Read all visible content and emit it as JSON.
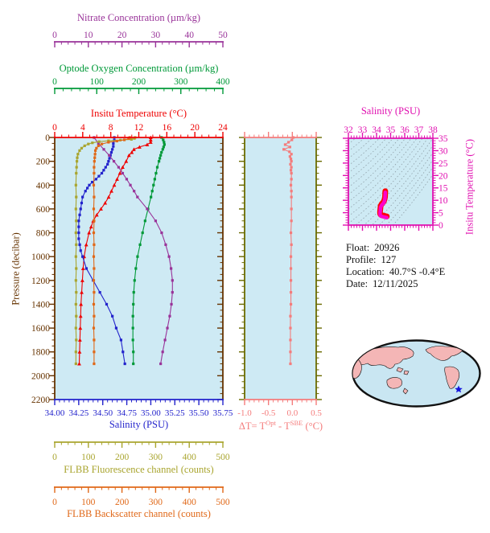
{
  "colors": {
    "plot_bg": "#CEEAF4",
    "nitrate": "#993399",
    "oxygen": "#009938",
    "temperature": "#EE0000",
    "pressure": "#663300",
    "salinity": "#2323CC",
    "fluorescence": "#A9A52F",
    "backscatter": "#E06818",
    "delta_t": "#F47C7C",
    "delta_border": "#6B6B00",
    "ts_axis": "#E010B0",
    "ts_curve": "#FF00CC",
    "ts_curve_tip": "#FF0000",
    "isopycnal": "#8FA0A8",
    "map_land": "#F4B6B6",
    "map_ocean": "#C9E6F2",
    "map_outline": "#111111",
    "map_marker": "#1515DD"
  },
  "axes": {
    "nitrate": {
      "title": "Nitrate Concentration (µm/kg)",
      "min": 0,
      "max": 50,
      "majors": [
        0,
        10,
        20,
        30,
        40,
        50
      ],
      "minor_step": 2,
      "color": "#993399"
    },
    "oxygen": {
      "title": "Optode Oxygen Concentration (µm/kg)",
      "min": 0,
      "max": 400,
      "majors": [
        0,
        100,
        200,
        300,
        400
      ],
      "minor_step": 20,
      "color": "#009938"
    },
    "temperature": {
      "title": "Insitu Temperature (°C)",
      "min": 0,
      "max": 24,
      "majors": [
        0,
        4,
        8,
        12,
        16,
        20,
        24
      ],
      "minor_step": 1,
      "color": "#EE0000"
    },
    "pressure": {
      "title": "Pressure (decibar)",
      "min": 0,
      "max": 2200,
      "majors": [
        0,
        200,
        400,
        600,
        800,
        1000,
        1200,
        1400,
        1600,
        1800,
        2000,
        2200
      ],
      "minor_step": 50,
      "color": "#663300"
    },
    "salinity": {
      "title": "Salinity (PSU)",
      "min": 34,
      "max": 35.75,
      "majors": [
        "34.00",
        "34.25",
        "34.50",
        "34.75",
        "35.00",
        "35.25",
        "35.50",
        "35.75"
      ],
      "minor_step": 0.05,
      "color": "#2323CC"
    },
    "fluorescence": {
      "title": "FLBB Fluorescence channel (counts)",
      "min": 0,
      "max": 500,
      "majors": [
        0,
        100,
        200,
        300,
        400,
        500
      ],
      "minor_step": 20,
      "color": "#A9A52F"
    },
    "backscatter": {
      "title": "FLBB Backscatter channel (counts)",
      "min": 0,
      "max": 500,
      "majors": [
        0,
        100,
        200,
        300,
        400,
        500
      ],
      "minor_step": 20,
      "color": "#E06818"
    },
    "delta_t": {
      "title_prefix": "ΔT= T",
      "title_sup1": "Opt",
      "title_mid": " - T",
      "title_sup2": "SBE",
      "title_suffix": " (°C)",
      "min": -1,
      "max": 0.5,
      "majors": [
        "-1.0",
        "-0.5",
        "0.0",
        "0.5"
      ],
      "minor_step": 0.1,
      "color": "#F47C7C"
    },
    "ts_salinity": {
      "title": "Salinity (PSU)",
      "min": 32,
      "max": 38,
      "majors": [
        32,
        33,
        34,
        35,
        36,
        37,
        38
      ],
      "minor_step": 0.2,
      "color": "#E010B0"
    },
    "ts_temperature": {
      "title": "Insitu Temperature (°C)",
      "min": 0,
      "max": 35,
      "majors": [
        0,
        5,
        10,
        15,
        20,
        25,
        30,
        35
      ],
      "minor_step": 1,
      "color": "#E010B0"
    }
  },
  "info": {
    "lines": [
      {
        "label": "Float:",
        "value": "20926"
      },
      {
        "label": "Profile:",
        "value": "127"
      },
      {
        "label": "Location:",
        "value": "40.7°S  -0.4°E"
      },
      {
        "label": "Date:",
        "value": "12/11/2025"
      }
    ]
  },
  "chart_data": [
    {
      "type": "line",
      "title": "Multi-parameter float profiles vs pressure",
      "ylabel": "Pressure (decibar)",
      "ylim": [
        0,
        2200
      ],
      "grid": false,
      "series": [
        {
          "name": "Insitu Temperature (°C)",
          "color": "#EE0000",
          "marker": "triangle",
          "axis_range": [
            0,
            24
          ],
          "pressure": [
            0,
            20,
            40,
            60,
            80,
            100,
            125,
            150,
            200,
            250,
            300,
            350,
            400,
            450,
            500,
            550,
            600,
            650,
            700,
            750,
            800,
            900,
            1000,
            1100,
            1200,
            1300,
            1400,
            1500,
            1600,
            1700,
            1800,
            1900
          ],
          "values": [
            13.7,
            13.7,
            13.7,
            13.2,
            12.1,
            11.3,
            11.0,
            10.6,
            10.2,
            9.7,
            9.3,
            8.9,
            8.5,
            8.1,
            7.7,
            7.2,
            6.6,
            6.0,
            5.5,
            5.2,
            4.9,
            4.5,
            4.2,
            4.05,
            3.95,
            3.85,
            3.75,
            3.7,
            3.65,
            3.6,
            3.55,
            3.5
          ]
        },
        {
          "name": "Salinity (PSU)",
          "color": "#2323CC",
          "marker": "square",
          "axis_range": [
            34,
            35.75
          ],
          "pressure": [
            0,
            25,
            50,
            75,
            100,
            125,
            150,
            175,
            200,
            225,
            250,
            275,
            300,
            325,
            350,
            375,
            400,
            425,
            450,
            500,
            550,
            600,
            650,
            700,
            750,
            800,
            850,
            900,
            950,
            1000,
            1100,
            1200,
            1300,
            1400,
            1500,
            1600,
            1700,
            1800,
            1900
          ],
          "values": [
            34.62,
            34.62,
            34.61,
            34.61,
            34.6,
            34.59,
            34.58,
            34.57,
            34.56,
            34.55,
            34.53,
            34.51,
            34.49,
            34.46,
            34.43,
            34.39,
            34.36,
            34.34,
            34.32,
            34.29,
            34.28,
            34.27,
            34.26,
            34.25,
            34.25,
            34.25,
            34.25,
            34.26,
            34.27,
            34.29,
            34.33,
            34.4,
            34.47,
            34.54,
            34.6,
            34.64,
            34.69,
            34.71,
            34.73
          ]
        },
        {
          "name": "Optode Oxygen Concentration (µm/kg)",
          "color": "#009938",
          "marker": "square",
          "axis_range": [
            0,
            400
          ],
          "pressure": [
            0,
            20,
            40,
            60,
            80,
            100,
            125,
            150,
            175,
            200,
            250,
            300,
            350,
            400,
            450,
            500,
            600,
            700,
            800,
            900,
            1000,
            1100,
            1200,
            1300,
            1400,
            1500,
            1600,
            1700,
            1800,
            1900
          ],
          "values": [
            254,
            258,
            260,
            261,
            259,
            257,
            254,
            252,
            250,
            248,
            244,
            241,
            238,
            235,
            232,
            229,
            222,
            215,
            209,
            203,
            197,
            193,
            190,
            188,
            187,
            186,
            186,
            186,
            187,
            187
          ]
        },
        {
          "name": "Nitrate Concentration (µm/kg)",
          "color": "#993399",
          "marker": "square",
          "axis_range": [
            0,
            50
          ],
          "pressure": [
            0,
            50,
            100,
            150,
            200,
            250,
            300,
            350,
            400,
            450,
            500,
            600,
            700,
            800,
            900,
            1000,
            1100,
            1200,
            1300,
            1400,
            1500,
            1600,
            1700,
            1800,
            1900
          ],
          "values": [
            11.7,
            13.0,
            14.6,
            16.2,
            17.6,
            19.0,
            20.2,
            21.4,
            22.5,
            23.6,
            24.6,
            27.5,
            30.0,
            31.8,
            33.0,
            34.0,
            34.6,
            35.0,
            35.0,
            34.7,
            34.2,
            33.5,
            32.8,
            32.1,
            31.5
          ]
        },
        {
          "name": "FLBB Fluorescence channel (counts)",
          "color": "#A9A52F",
          "marker": "square",
          "axis_range": [
            0,
            500
          ],
          "pressure": [
            0,
            8,
            16,
            22,
            28,
            35,
            45,
            55,
            70,
            90,
            110,
            140,
            170,
            200,
            250,
            300,
            400,
            500,
            600,
            700,
            800,
            900,
            1000,
            1100,
            1200,
            1300,
            1400,
            1500,
            1600,
            1700,
            1800,
            1900
          ],
          "values": [
            239,
            237,
            228,
            195,
            160,
            132,
            112,
            100,
            89,
            80,
            74,
            69,
            67,
            66,
            65,
            64,
            63,
            64,
            63,
            64,
            63,
            64,
            63,
            64,
            63,
            64,
            63,
            64,
            63,
            64,
            63,
            63
          ]
        },
        {
          "name": "FLBB Backscatter channel (counts)",
          "color": "#E06818",
          "marker": "square",
          "axis_range": [
            0,
            500
          ],
          "pressure": [
            0,
            10,
            20,
            30,
            40,
            55,
            70,
            90,
            110,
            140,
            170,
            200,
            250,
            300,
            400,
            500,
            600,
            700,
            800,
            900,
            1000,
            1100,
            1200,
            1300,
            1400,
            1500,
            1600,
            1700,
            1800,
            1900
          ],
          "values": [
            223,
            220,
            207,
            185,
            160,
            140,
            130,
            124,
            121,
            120,
            119,
            118,
            117,
            117,
            116,
            117,
            116,
            117,
            116,
            117,
            116,
            117,
            116,
            117,
            116,
            117,
            116,
            117,
            117,
            117
          ]
        }
      ]
    },
    {
      "type": "line",
      "title": "ΔT = TOpt - TSBE (°C) vs pressure",
      "xlim": [
        -1.0,
        0.5
      ],
      "ylim": [
        0,
        2200
      ],
      "color": "#F47C7C",
      "pressure": [
        0,
        20,
        40,
        60,
        80,
        100,
        120,
        140,
        160,
        180,
        200,
        225,
        250,
        275,
        300,
        350,
        400,
        450,
        500,
        600,
        700,
        800,
        900,
        1000,
        1100,
        1200,
        1300,
        1400,
        1500,
        1600,
        1700,
        1800,
        1900
      ],
      "values": [
        0.02,
        -0.01,
        -0.08,
        -0.15,
        -0.05,
        -0.18,
        -0.06,
        -0.02,
        -0.05,
        -0.03,
        -0.02,
        -0.04,
        -0.02,
        -0.03,
        -0.02,
        -0.02,
        -0.03,
        -0.02,
        -0.02,
        -0.02,
        -0.02,
        -0.03,
        -0.02,
        -0.03,
        -0.03,
        -0.03,
        -0.03,
        -0.03,
        -0.04,
        -0.04,
        -0.04,
        -0.04,
        -0.04
      ]
    },
    {
      "type": "line",
      "title": "T-S diagram with isopycnal contours",
      "xlabel": "Salinity (PSU)",
      "ylabel": "Insitu Temperature (°C)",
      "xlim": [
        32,
        38
      ],
      "ylim": [
        0,
        35
      ],
      "isopycnal_contours": true,
      "salinity": [
        34.62,
        34.6,
        34.56,
        34.49,
        34.36,
        34.29,
        34.27,
        34.25,
        34.25,
        34.26,
        34.29,
        34.33,
        34.4,
        34.47,
        34.54,
        34.6,
        34.64,
        34.69,
        34.73
      ],
      "temperature": [
        13.7,
        11.3,
        10.2,
        9.3,
        8.5,
        7.7,
        6.6,
        5.5,
        4.9,
        4.5,
        4.2,
        4.05,
        3.95,
        3.85,
        3.75,
        3.7,
        3.6,
        3.55,
        3.5
      ]
    },
    {
      "type": "map",
      "title": "Float position map",
      "marker_symbol": "star",
      "marker_color": "#1515DD"
    }
  ]
}
